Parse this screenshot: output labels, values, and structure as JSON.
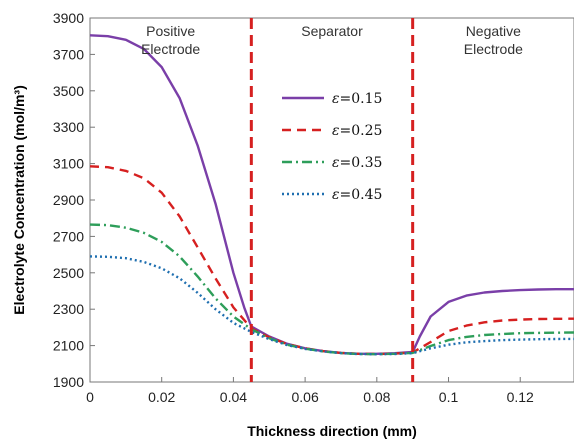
{
  "chart_data": {
    "type": "line",
    "xlabel": "Thickness direction (mm)",
    "ylabel": "Electrolyte Concentration (mol/m³)",
    "xlim": [
      0,
      0.135
    ],
    "ylim": [
      1900,
      3900
    ],
    "x_ticks": [
      0,
      0.02,
      0.04,
      0.06,
      0.08,
      0.1,
      0.12
    ],
    "x_tick_labels": [
      "0",
      "0.02",
      "0.04",
      "0.06",
      "0.08",
      "0.1",
      "0.12"
    ],
    "y_ticks": [
      1900,
      2100,
      2300,
      2500,
      2700,
      2900,
      3100,
      3300,
      3500,
      3700,
      3900
    ],
    "y_tick_labels": [
      "1900",
      "2100",
      "2300",
      "2500",
      "2700",
      "2900",
      "3100",
      "3300",
      "3500",
      "3700",
      "3900"
    ],
    "grid": false,
    "legend_position": "center-left of separator region",
    "regions": [
      {
        "lines": [
          "Positive",
          "Electrode"
        ]
      },
      {
        "lines": [
          "Separator"
        ]
      },
      {
        "lines": [
          "Negative",
          "Electrode"
        ]
      }
    ],
    "boundaries": [
      {
        "x": 0.045,
        "color": "#d62020"
      },
      {
        "x": 0.09,
        "color": "#d62020"
      }
    ],
    "series": [
      {
        "name": "ε=0.15",
        "legend_symbol": "ε",
        "legend_value": "=0.15",
        "color": "#7a3fa8",
        "dash": "",
        "x": [
          0,
          0.005,
          0.01,
          0.015,
          0.02,
          0.025,
          0.03,
          0.035,
          0.04,
          0.043,
          0.045,
          0.05,
          0.055,
          0.06,
          0.065,
          0.07,
          0.075,
          0.08,
          0.085,
          0.09,
          0.092,
          0.095,
          0.1,
          0.105,
          0.11,
          0.115,
          0.12,
          0.125,
          0.13,
          0.135
        ],
        "y": [
          3805,
          3800,
          3780,
          3730,
          3630,
          3460,
          3200,
          2880,
          2500,
          2310,
          2205,
          2150,
          2110,
          2085,
          2070,
          2060,
          2055,
          2055,
          2058,
          2065,
          2150,
          2260,
          2340,
          2375,
          2392,
          2400,
          2405,
          2408,
          2410,
          2410
        ]
      },
      {
        "name": "ε=0.25",
        "legend_symbol": "ε",
        "legend_value": "=0.25",
        "color": "#d62020",
        "dash": "9,6",
        "x": [
          0,
          0.005,
          0.01,
          0.015,
          0.02,
          0.025,
          0.03,
          0.035,
          0.04,
          0.045,
          0.05,
          0.055,
          0.06,
          0.065,
          0.07,
          0.075,
          0.08,
          0.085,
          0.09,
          0.095,
          0.1,
          0.105,
          0.11,
          0.115,
          0.12,
          0.125,
          0.13,
          0.135
        ],
        "y": [
          3085,
          3080,
          3060,
          3020,
          2940,
          2810,
          2640,
          2470,
          2310,
          2195,
          2145,
          2108,
          2085,
          2070,
          2060,
          2055,
          2054,
          2056,
          2062,
          2120,
          2180,
          2210,
          2228,
          2238,
          2243,
          2246,
          2247,
          2248
        ]
      },
      {
        "name": "ε=0.35",
        "legend_symbol": "ε",
        "legend_value": "=0.35",
        "color": "#2e9e5a",
        "dash": "10,4,2,4",
        "x": [
          0,
          0.005,
          0.01,
          0.015,
          0.02,
          0.025,
          0.03,
          0.035,
          0.04,
          0.045,
          0.05,
          0.055,
          0.06,
          0.065,
          0.07,
          0.075,
          0.08,
          0.085,
          0.09,
          0.095,
          0.1,
          0.105,
          0.11,
          0.115,
          0.12,
          0.125,
          0.13,
          0.135
        ],
        "y": [
          2765,
          2762,
          2748,
          2720,
          2670,
          2590,
          2480,
          2360,
          2260,
          2190,
          2140,
          2105,
          2083,
          2068,
          2059,
          2054,
          2053,
          2055,
          2060,
          2098,
          2130,
          2148,
          2158,
          2164,
          2168,
          2170,
          2171,
          2172
        ]
      },
      {
        "name": "ε=0.45",
        "legend_symbol": "ε",
        "legend_value": "=0.45",
        "color": "#1f6fb0",
        "dash": "2,3",
        "x": [
          0,
          0.005,
          0.01,
          0.015,
          0.02,
          0.025,
          0.03,
          0.035,
          0.04,
          0.045,
          0.05,
          0.055,
          0.06,
          0.065,
          0.07,
          0.075,
          0.08,
          0.085,
          0.09,
          0.095,
          0.1,
          0.105,
          0.11,
          0.115,
          0.12,
          0.125,
          0.13,
          0.135
        ],
        "y": [
          2590,
          2588,
          2580,
          2560,
          2525,
          2470,
          2390,
          2300,
          2225,
          2175,
          2135,
          2103,
          2082,
          2068,
          2059,
          2054,
          2053,
          2054,
          2058,
          2085,
          2105,
          2118,
          2125,
          2130,
          2133,
          2135,
          2136,
          2137
        ]
      }
    ]
  }
}
